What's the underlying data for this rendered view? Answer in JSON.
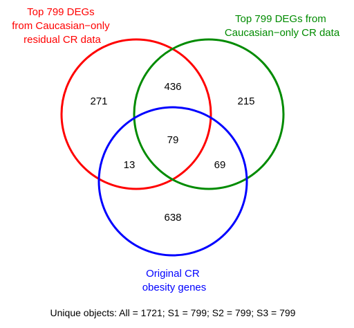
{
  "sets": {
    "s1": {
      "label_lines": [
        "Top 799 DEGs",
        "from Caucasian−only",
        "residual CR data"
      ],
      "color": "#ff0000"
    },
    "s2": {
      "label_lines": [
        "Top 799 DEGs from",
        "Caucasian−only CR data"
      ],
      "color": "#008b00"
    },
    "s3": {
      "label_lines": [
        "Original CR",
        "obesity genes"
      ],
      "color": "#0000ff"
    }
  },
  "regions": {
    "s1_only": "271",
    "s2_only": "215",
    "s3_only": "638",
    "s1_s2": "436",
    "s1_s3": "13",
    "s2_s3": "69",
    "s1_s2_s3": "79"
  },
  "summary": "Unique objects: All = 1721; S1 = 799; S2 = 799; S3 = 799"
}
